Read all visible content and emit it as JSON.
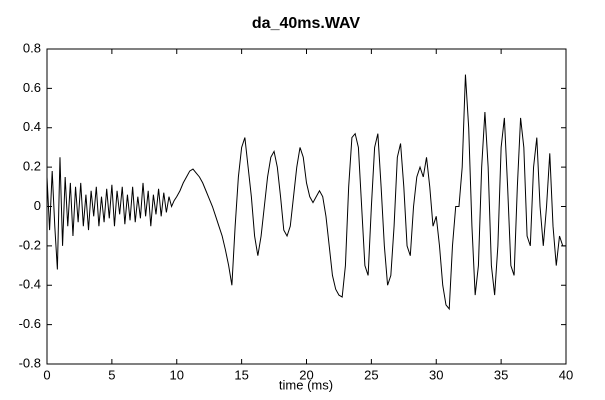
{
  "chart_data": {
    "type": "line",
    "title": "da_40ms.WAV",
    "x_label": "time (ms)",
    "x": [
      0,
      0.2,
      0.4,
      0.6,
      0.8,
      1.0,
      1.2,
      1.4,
      1.6,
      1.8,
      2.0,
      2.2,
      2.4,
      2.6,
      2.8,
      3.0,
      3.2,
      3.4,
      3.6,
      3.8,
      4.0,
      4.2,
      4.4,
      4.6,
      4.8,
      5.0,
      5.2,
      5.4,
      5.6,
      5.8,
      6.0,
      6.2,
      6.4,
      6.6,
      6.8,
      7.0,
      7.2,
      7.4,
      7.6,
      7.8,
      8.0,
      8.2,
      8.4,
      8.6,
      8.8,
      9.0,
      9.2,
      9.4,
      9.6,
      9.8,
      10,
      10.25,
      10.5,
      10.75,
      11,
      11.25,
      11.5,
      11.75,
      12,
      12.25,
      12.5,
      12.75,
      13,
      13.25,
      13.5,
      13.75,
      14,
      14.25,
      14.5,
      14.75,
      15,
      15.25,
      15.5,
      15.75,
      16,
      16.25,
      16.5,
      16.75,
      17,
      17.25,
      17.5,
      17.75,
      18,
      18.25,
      18.5,
      18.75,
      19,
      19.25,
      19.5,
      19.75,
      20,
      20.25,
      20.5,
      20.75,
      21,
      21.25,
      21.5,
      21.75,
      22,
      22.25,
      22.5,
      22.75,
      23,
      23.25,
      23.5,
      23.75,
      24,
      24.25,
      24.5,
      24.75,
      25,
      25.25,
      25.5,
      25.75,
      26,
      26.25,
      26.5,
      26.75,
      27,
      27.25,
      27.5,
      27.75,
      28,
      28.25,
      28.5,
      28.75,
      29,
      29.25,
      29.5,
      29.75,
      30,
      30.25,
      30.5,
      30.75,
      31,
      31.25,
      31.5,
      31.75,
      32,
      32.25,
      32.5,
      32.75,
      33,
      33.25,
      33.5,
      33.75,
      34,
      34.25,
      34.5,
      34.75,
      35,
      35.25,
      35.5,
      35.75,
      36,
      36.25,
      36.5,
      36.75,
      37,
      37.25,
      37.5,
      37.75,
      38,
      38.25,
      38.5,
      38.75,
      39,
      39.25,
      39.5,
      39.75,
      40
    ],
    "series": [
      {
        "color": "#000000",
        "values": [
          0.15,
          -0.12,
          0.18,
          -0.1,
          -0.32,
          0.25,
          -0.2,
          0.15,
          -0.1,
          0.12,
          -0.15,
          0.1,
          -0.08,
          0.12,
          -0.1,
          0.06,
          -0.12,
          0.08,
          -0.05,
          0.1,
          -0.1,
          0.05,
          -0.08,
          0.09,
          -0.06,
          0.11,
          -0.1,
          0.08,
          -0.04,
          0.1,
          -0.09,
          0.06,
          -0.07,
          0.1,
          -0.08,
          0.05,
          -0.06,
          0.12,
          -0.05,
          0.08,
          -0.1,
          0.06,
          -0.04,
          0.09,
          -0.05,
          0.07,
          -0.03,
          0.05,
          0.0,
          0.03,
          0.05,
          0.08,
          0.12,
          0.15,
          0.18,
          0.19,
          0.17,
          0.15,
          0.12,
          0.08,
          0.04,
          0.0,
          -0.05,
          -0.1,
          -0.15,
          -0.22,
          -0.3,
          -0.4,
          -0.1,
          0.15,
          0.3,
          0.35,
          0.2,
          0.05,
          -0.15,
          -0.25,
          -0.15,
          0.0,
          0.15,
          0.25,
          0.28,
          0.2,
          0.05,
          -0.12,
          -0.15,
          -0.1,
          0.05,
          0.2,
          0.3,
          0.25,
          0.12,
          0.05,
          0.02,
          0.05,
          0.08,
          0.05,
          -0.05,
          -0.2,
          -0.35,
          -0.42,
          -0.45,
          -0.46,
          -0.3,
          0.1,
          0.35,
          0.37,
          0.3,
          0.0,
          -0.3,
          -0.35,
          0.0,
          0.3,
          0.37,
          0.1,
          -0.2,
          -0.4,
          -0.35,
          -0.1,
          0.25,
          0.32,
          0.1,
          -0.2,
          -0.25,
          0.0,
          0.15,
          0.2,
          0.15,
          0.25,
          0.1,
          -0.1,
          -0.05,
          -0.2,
          -0.4,
          -0.5,
          -0.52,
          -0.2,
          0.0,
          0.0,
          0.2,
          0.67,
          0.4,
          -0.1,
          -0.45,
          -0.3,
          0.2,
          0.48,
          0.2,
          -0.3,
          -0.45,
          -0.2,
          0.3,
          0.45,
          0.1,
          -0.3,
          -0.35,
          0.1,
          0.45,
          0.3,
          -0.15,
          -0.2,
          0.2,
          0.35,
          0.0,
          -0.2,
          0.0,
          0.27,
          -0.1,
          -0.3,
          -0.15,
          -0.2,
          -0.2
        ]
      }
    ],
    "xlim": [
      0,
      40
    ],
    "xticks": [
      0,
      5,
      10,
      15,
      20,
      25,
      30,
      35,
      40
    ],
    "ylim": [
      -0.8,
      0.8
    ],
    "yticks": [
      -0.8,
      -0.6,
      -0.4,
      -0.2,
      0,
      0.2,
      0.4,
      0.6,
      0.8
    ],
    "grid": false
  }
}
